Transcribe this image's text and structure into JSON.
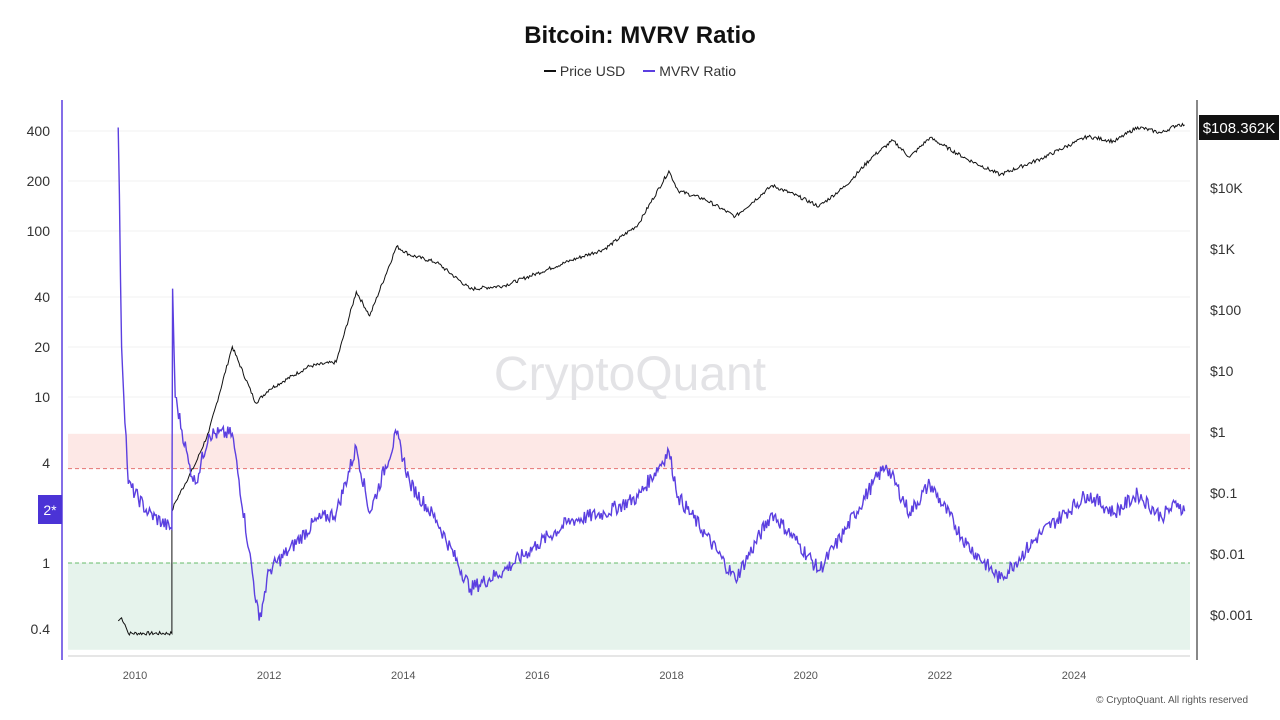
{
  "chart_data": {
    "type": "line",
    "title": "Bitcoin: MVRV Ratio",
    "watermark": "CryptoQuant",
    "footer": "© CryptoQuant. All rights reserved",
    "legend_position": "top-center",
    "current_price_label": "$108.362K",
    "left_axis_badge": "2*",
    "x_ticks": [
      "2010",
      "2012",
      "2014",
      "2016",
      "2018",
      "2020",
      "2022",
      "2024"
    ],
    "left_axis": {
      "scale": "log",
      "ticks": [
        "400",
        "200",
        "100",
        "40",
        "20",
        "10",
        "4",
        "1",
        "0.4"
      ],
      "range": [
        0.3,
        600
      ]
    },
    "right_axis": {
      "scale": "log",
      "ticks": [
        "$10K",
        "$1K",
        "$100",
        "$10",
        "$1",
        "$0.1",
        "$0.01",
        "$0.001"
      ],
      "range": [
        0.0002,
        300000
      ]
    },
    "bands": [
      {
        "name": "overvalued-zone",
        "from": 3.7,
        "to": 6,
        "color": "#fde8e6",
        "line": "#e57373"
      },
      {
        "name": "undervalued-zone",
        "from": 0.3,
        "to": 1,
        "color": "#e6f3ec",
        "line": "#66bb6a"
      }
    ],
    "series": [
      {
        "name": "Price USD",
        "axis": "right",
        "color": "#111111",
        "points": [
          [
            2009.75,
            0.0008
          ],
          [
            2009.8,
            0.0009
          ],
          [
            2009.85,
            0.0007
          ],
          [
            2009.9,
            0.0005
          ],
          [
            2010.55,
            0.0005
          ],
          [
            2010.55,
            0.05
          ],
          [
            2010.6,
            0.07
          ],
          [
            2010.9,
            0.3
          ],
          [
            2011.1,
            1
          ],
          [
            2011.45,
            25
          ],
          [
            2011.8,
            3
          ],
          [
            2012.0,
            5
          ],
          [
            2012.6,
            12
          ],
          [
            2013.0,
            14
          ],
          [
            2013.3,
            200
          ],
          [
            2013.5,
            80
          ],
          [
            2013.9,
            1100
          ],
          [
            2014.1,
            800
          ],
          [
            2014.5,
            600
          ],
          [
            2015.0,
            220
          ],
          [
            2015.5,
            250
          ],
          [
            2016.0,
            400
          ],
          [
            2016.5,
            650
          ],
          [
            2017.0,
            1000
          ],
          [
            2017.5,
            2500
          ],
          [
            2017.96,
            19000
          ],
          [
            2018.1,
            9000
          ],
          [
            2018.5,
            6500
          ],
          [
            2018.95,
            3400
          ],
          [
            2019.5,
            11000
          ],
          [
            2019.9,
            7200
          ],
          [
            2020.2,
            5000
          ],
          [
            2020.6,
            11000
          ],
          [
            2021.0,
            33000
          ],
          [
            2021.3,
            60000
          ],
          [
            2021.55,
            32000
          ],
          [
            2021.85,
            67000
          ],
          [
            2022.4,
            30000
          ],
          [
            2022.9,
            16500
          ],
          [
            2023.5,
            30000
          ],
          [
            2024.2,
            70000
          ],
          [
            2024.6,
            58000
          ],
          [
            2024.95,
            100000
          ],
          [
            2025.3,
            80000
          ],
          [
            2025.55,
            110000
          ],
          [
            2025.65,
            108362
          ]
        ]
      },
      {
        "name": "MVRV Ratio",
        "axis": "left",
        "color": "#5b3fe0",
        "points": [
          [
            2009.75,
            420
          ],
          [
            2009.8,
            20
          ],
          [
            2009.9,
            3
          ],
          [
            2010.2,
            2
          ],
          [
            2010.55,
            1.6
          ],
          [
            2010.56,
            45
          ],
          [
            2010.6,
            10
          ],
          [
            2010.8,
            4
          ],
          [
            2010.9,
            3
          ],
          [
            2011.1,
            6
          ],
          [
            2011.45,
            6
          ],
          [
            2011.7,
            1.2
          ],
          [
            2011.85,
            0.45
          ],
          [
            2012.0,
            0.9
          ],
          [
            2012.3,
            1.2
          ],
          [
            2012.7,
            1.8
          ],
          [
            2013.0,
            2
          ],
          [
            2013.3,
            5
          ],
          [
            2013.5,
            2
          ],
          [
            2013.9,
            6
          ],
          [
            2014.1,
            3
          ],
          [
            2014.5,
            1.8
          ],
          [
            2015.0,
            0.7
          ],
          [
            2015.5,
            0.9
          ],
          [
            2016.0,
            1.3
          ],
          [
            2016.5,
            1.8
          ],
          [
            2017.0,
            2
          ],
          [
            2017.5,
            2.5
          ],
          [
            2017.96,
            4.7
          ],
          [
            2018.1,
            2.5
          ],
          [
            2018.5,
            1.5
          ],
          [
            2018.95,
            0.8
          ],
          [
            2019.5,
            2
          ],
          [
            2019.9,
            1.3
          ],
          [
            2020.2,
            0.9
          ],
          [
            2020.6,
            1.6
          ],
          [
            2021.0,
            3
          ],
          [
            2021.2,
            3.9
          ],
          [
            2021.55,
            2
          ],
          [
            2021.85,
            3
          ],
          [
            2022.4,
            1.3
          ],
          [
            2022.9,
            0.8
          ],
          [
            2023.5,
            1.5
          ],
          [
            2024.2,
            2.6
          ],
          [
            2024.6,
            2.0
          ],
          [
            2024.95,
            2.6
          ],
          [
            2025.3,
            1.9
          ],
          [
            2025.55,
            2.3
          ],
          [
            2025.65,
            2.05
          ]
        ]
      }
    ]
  }
}
